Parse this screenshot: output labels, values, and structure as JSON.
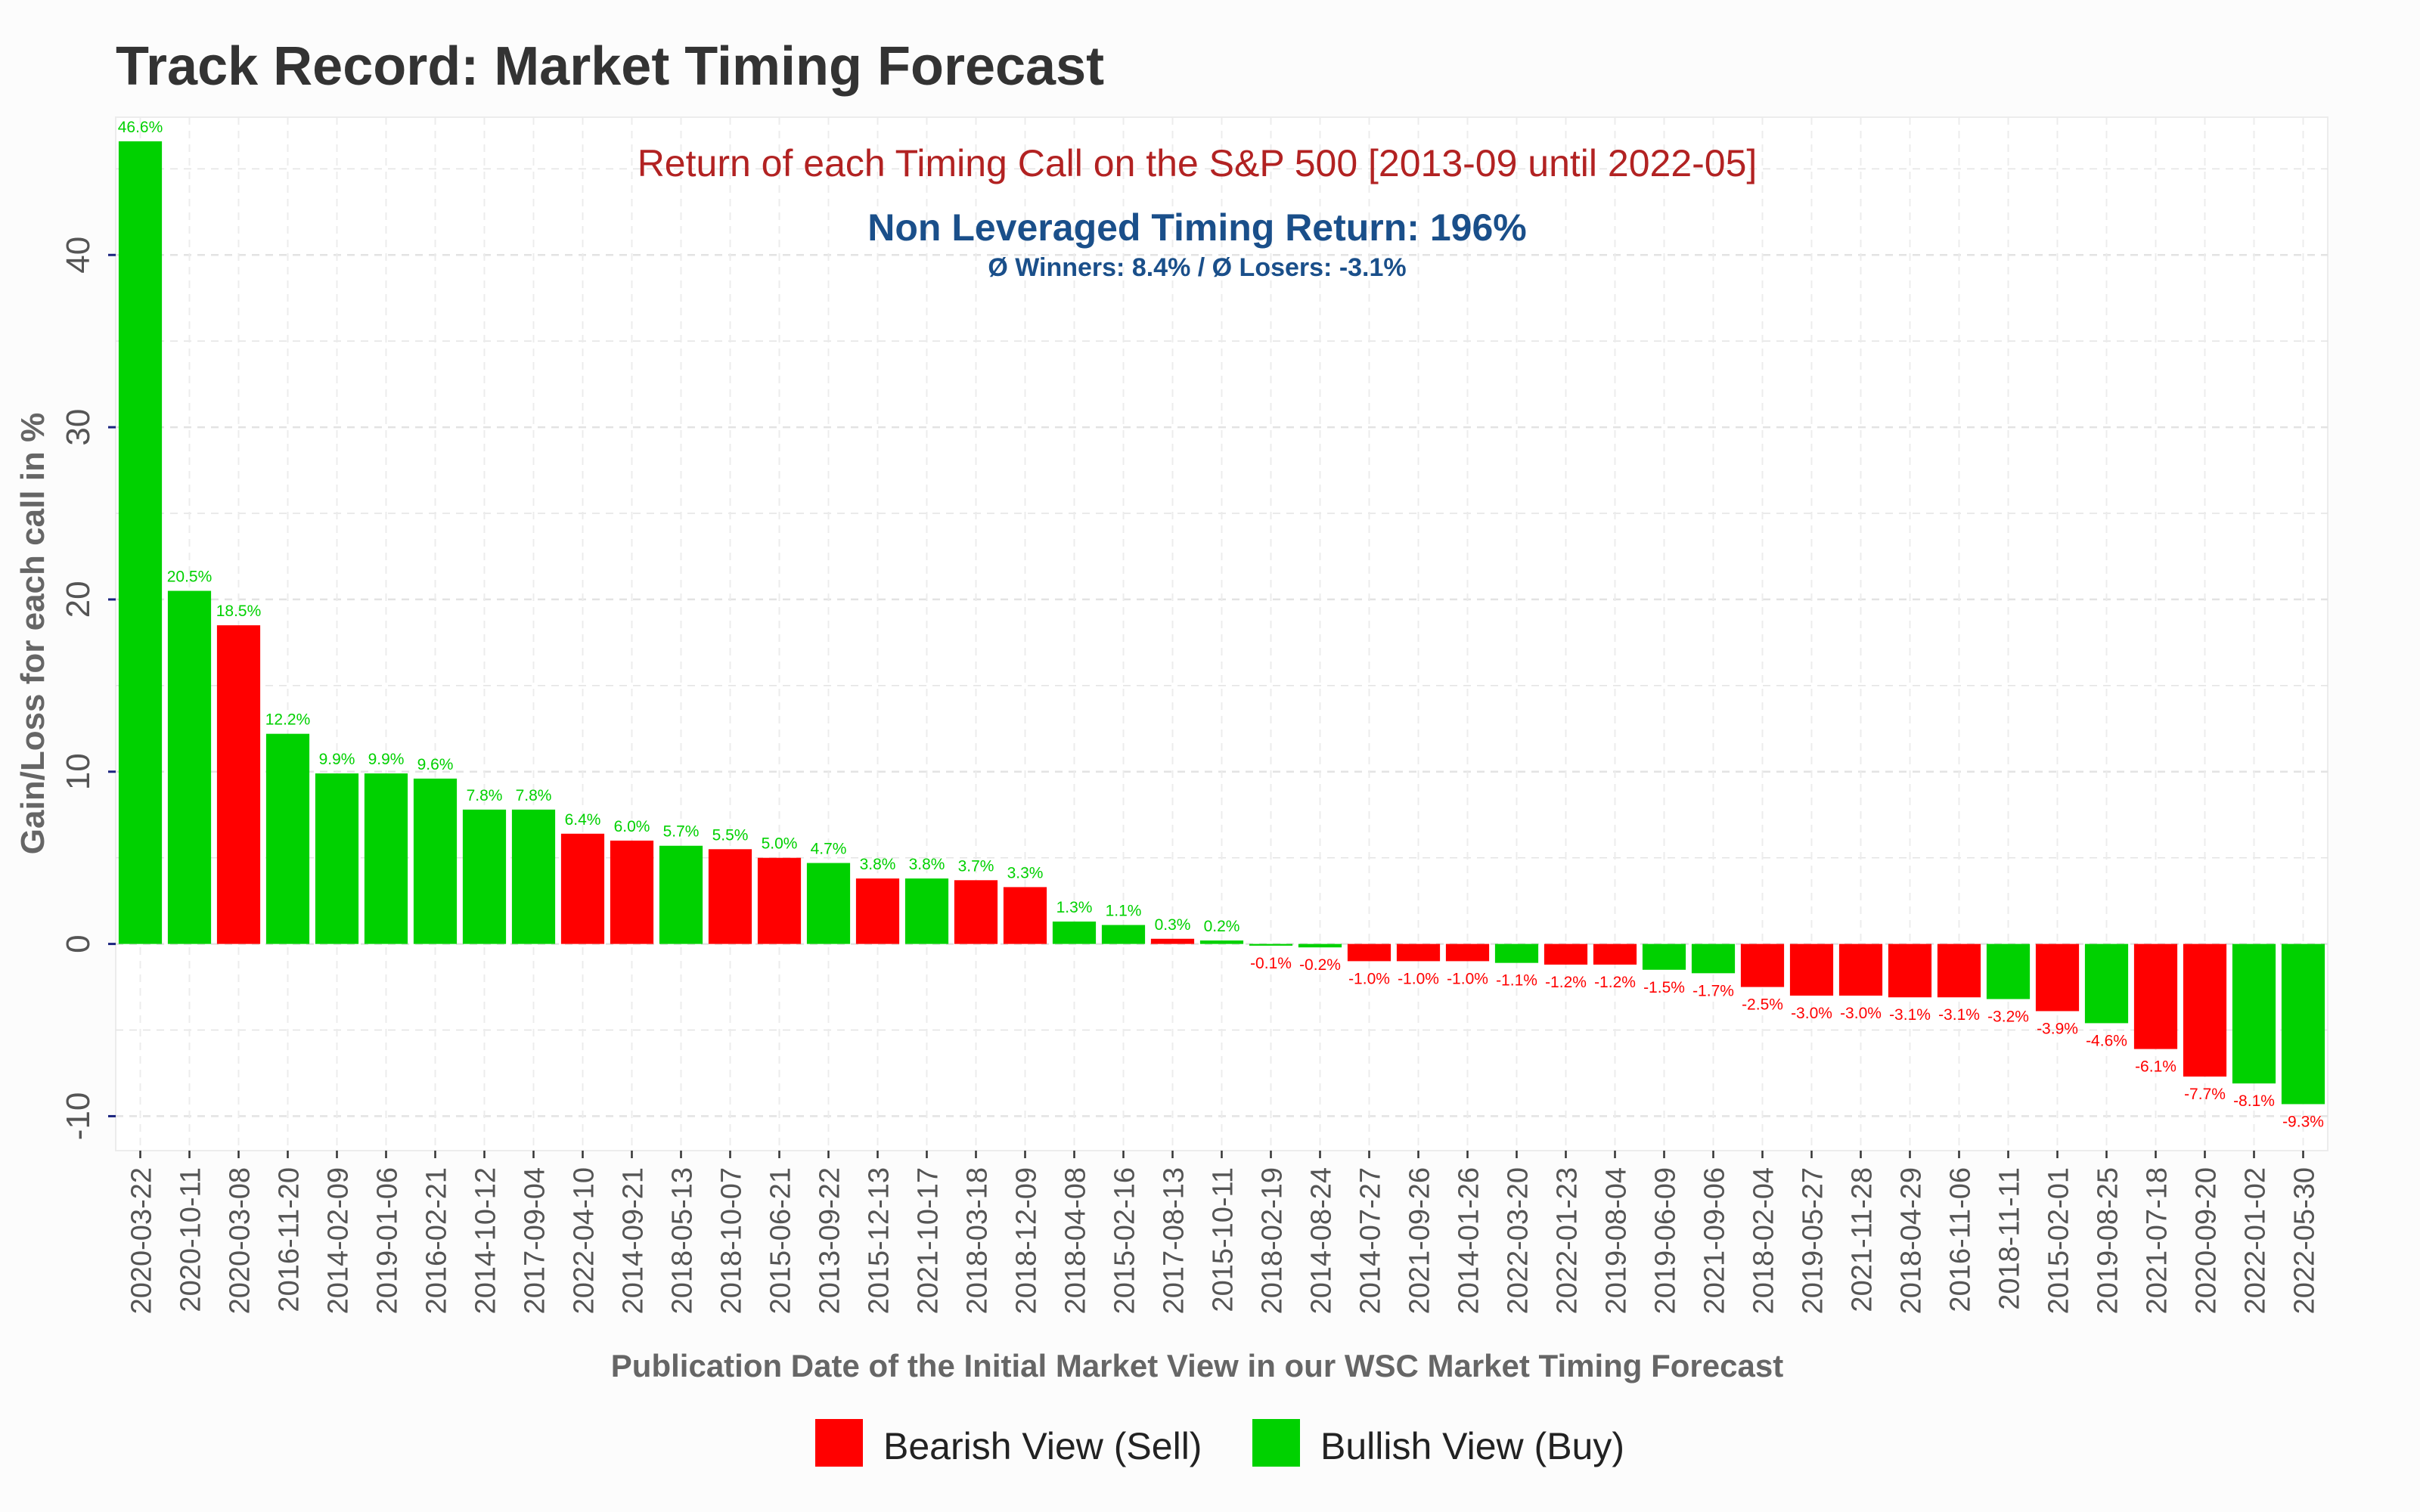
{
  "title": "Track Record: Market Timing Forecast",
  "subtitle": "Return of each Timing Call on the S&P 500 [2013-09 until 2022-05]",
  "summary_main": "Non Leveraged Timing Return: 196%",
  "summary_sub": "Ø Winners: 8.4% / Ø Losers: -3.1%",
  "colors": {
    "bearish": "#ff0000",
    "bullish": "#00d100",
    "subtitle": "#b22222",
    "summary": "#1a4f8a",
    "title": "#333333",
    "axis_text": "#555555"
  },
  "chart_data": {
    "type": "bar",
    "title": "Track Record: Market Timing Forecast",
    "xlabel": "Publication Date of the Initial Market View in our WSC Market Timing Forecast",
    "ylabel": "Gain/Loss for each call in %",
    "ylim": [
      -12,
      48
    ],
    "yticks": [
      -10,
      0,
      10,
      20,
      30,
      40
    ],
    "grid": true,
    "legend_position": "bottom",
    "legend": [
      {
        "key": "bearish",
        "label": "Bearish View (Sell)"
      },
      {
        "key": "bullish",
        "label": "Bullish View (Buy)"
      }
    ],
    "categories": [
      "2020-03-22",
      "2020-10-11",
      "2020-03-08",
      "2016-11-20",
      "2014-02-09",
      "2019-01-06",
      "2016-02-21",
      "2014-10-12",
      "2017-09-04",
      "2022-04-10",
      "2014-09-21",
      "2018-05-13",
      "2018-10-07",
      "2015-06-21",
      "2013-09-22",
      "2015-12-13",
      "2021-10-17",
      "2018-03-18",
      "2018-12-09",
      "2018-04-08",
      "2015-02-16",
      "2017-08-13",
      "2015-10-11",
      "2018-02-19",
      "2014-08-24",
      "2014-07-27",
      "2021-09-26",
      "2014-01-26",
      "2022-03-20",
      "2022-01-23",
      "2019-08-04",
      "2019-06-09",
      "2021-09-06",
      "2018-02-04",
      "2019-05-27",
      "2021-11-28",
      "2018-04-29",
      "2016-11-06",
      "2018-11-11",
      "2015-02-01",
      "2019-08-25",
      "2021-07-18",
      "2020-09-20",
      "2022-01-02",
      "2022-05-30"
    ],
    "values": [
      46.6,
      20.5,
      18.5,
      12.2,
      9.9,
      9.9,
      9.6,
      7.8,
      7.8,
      6.4,
      6.0,
      5.7,
      5.5,
      5.0,
      4.7,
      3.8,
      3.8,
      3.7,
      3.3,
      1.3,
      1.1,
      0.3,
      0.2,
      -0.1,
      -0.2,
      -1.0,
      -1.0,
      -1.0,
      -1.1,
      -1.2,
      -1.2,
      -1.5,
      -1.7,
      -2.5,
      -3.0,
      -3.0,
      -3.1,
      -3.1,
      -3.2,
      -3.9,
      -4.6,
      -6.1,
      -7.7,
      -8.1,
      -9.3
    ],
    "labels": [
      "46.6%",
      "20.5%",
      "18.5%",
      "12.2%",
      "9.9%",
      "9.9%",
      "9.6%",
      "7.8%",
      "7.8%",
      "6.4%",
      "6.0%",
      "5.7%",
      "5.5%",
      "5.0%",
      "4.7%",
      "3.8%",
      "3.8%",
      "3.7%",
      "3.3%",
      "1.3%",
      "1.1%",
      "0.3%",
      "0.2%",
      "-0.1%",
      "-0.2%",
      "-1.0%",
      "-1.0%",
      "-1.0%",
      "-1.1%",
      "-1.2%",
      "-1.2%",
      "-1.5%",
      "-1.7%",
      "-2.5%",
      "-3.0%",
      "-3.0%",
      "-3.1%",
      "-3.1%",
      "-3.2%",
      "-3.9%",
      "-4.6%",
      "-6.1%",
      "-7.7%",
      "-8.1%",
      "-9.3%"
    ],
    "view": [
      "bullish",
      "bullish",
      "bearish",
      "bullish",
      "bullish",
      "bullish",
      "bullish",
      "bullish",
      "bullish",
      "bearish",
      "bearish",
      "bullish",
      "bearish",
      "bearish",
      "bullish",
      "bearish",
      "bullish",
      "bearish",
      "bearish",
      "bullish",
      "bullish",
      "bearish",
      "bullish",
      "bullish",
      "bullish",
      "bearish",
      "bearish",
      "bearish",
      "bullish",
      "bearish",
      "bearish",
      "bullish",
      "bullish",
      "bearish",
      "bearish",
      "bearish",
      "bearish",
      "bearish",
      "bullish",
      "bearish",
      "bullish",
      "bearish",
      "bearish",
      "bullish",
      "bullish"
    ]
  }
}
